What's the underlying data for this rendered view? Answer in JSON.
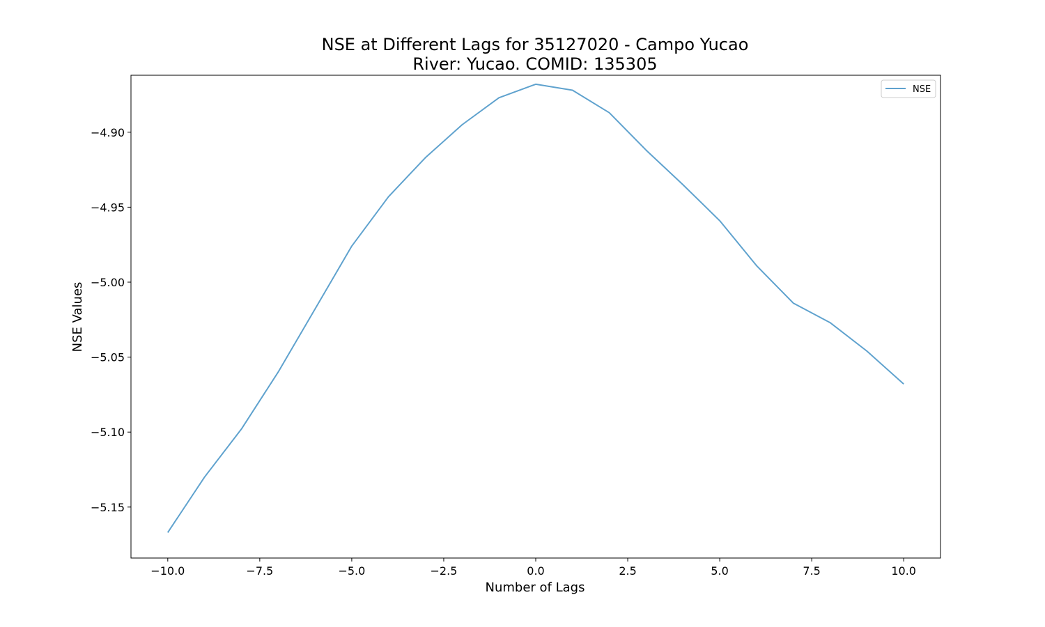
{
  "chart_data": {
    "type": "line",
    "title": "NSE at Different Lags for 35127020 - Campo Yucao",
    "subtitle": "River: Yucao. COMID: 135305",
    "xlabel": "Number of Lags",
    "ylabel": "NSE Values",
    "xlim": [
      -11,
      11
    ],
    "ylim": [
      -5.184,
      -4.862
    ],
    "x_ticks": [
      -10,
      -7.5,
      -5,
      -2.5,
      0,
      2.5,
      5,
      7.5,
      10
    ],
    "x_tick_labels": [
      "−10.0",
      "−7.5",
      "−5.0",
      "−2.5",
      "0.0",
      "2.5",
      "5.0",
      "7.5",
      "10.0"
    ],
    "y_ticks": [
      -5.15,
      -5.1,
      -5.05,
      -5.0,
      -4.95,
      -4.9
    ],
    "y_tick_labels": [
      "−5.15",
      "−5.10",
      "−5.05",
      "−5.00",
      "−4.95",
      "−4.90"
    ],
    "grid": false,
    "legend_position": "top-right",
    "series": [
      {
        "name": "NSE",
        "color": "#5fa2ce",
        "x": [
          -10,
          -9,
          -8,
          -7,
          -6,
          -5,
          -4,
          -3,
          -2,
          -1,
          0,
          1,
          2,
          3,
          4,
          5,
          6,
          7,
          8,
          9,
          10
        ],
        "values": [
          -5.167,
          -5.13,
          -5.098,
          -5.06,
          -5.018,
          -4.976,
          -4.943,
          -4.917,
          -4.895,
          -4.877,
          -4.868,
          -4.872,
          -4.887,
          -4.912,
          -4.935,
          -4.959,
          -4.989,
          -5.014,
          -5.027,
          -5.046,
          -5.068
        ]
      }
    ]
  }
}
